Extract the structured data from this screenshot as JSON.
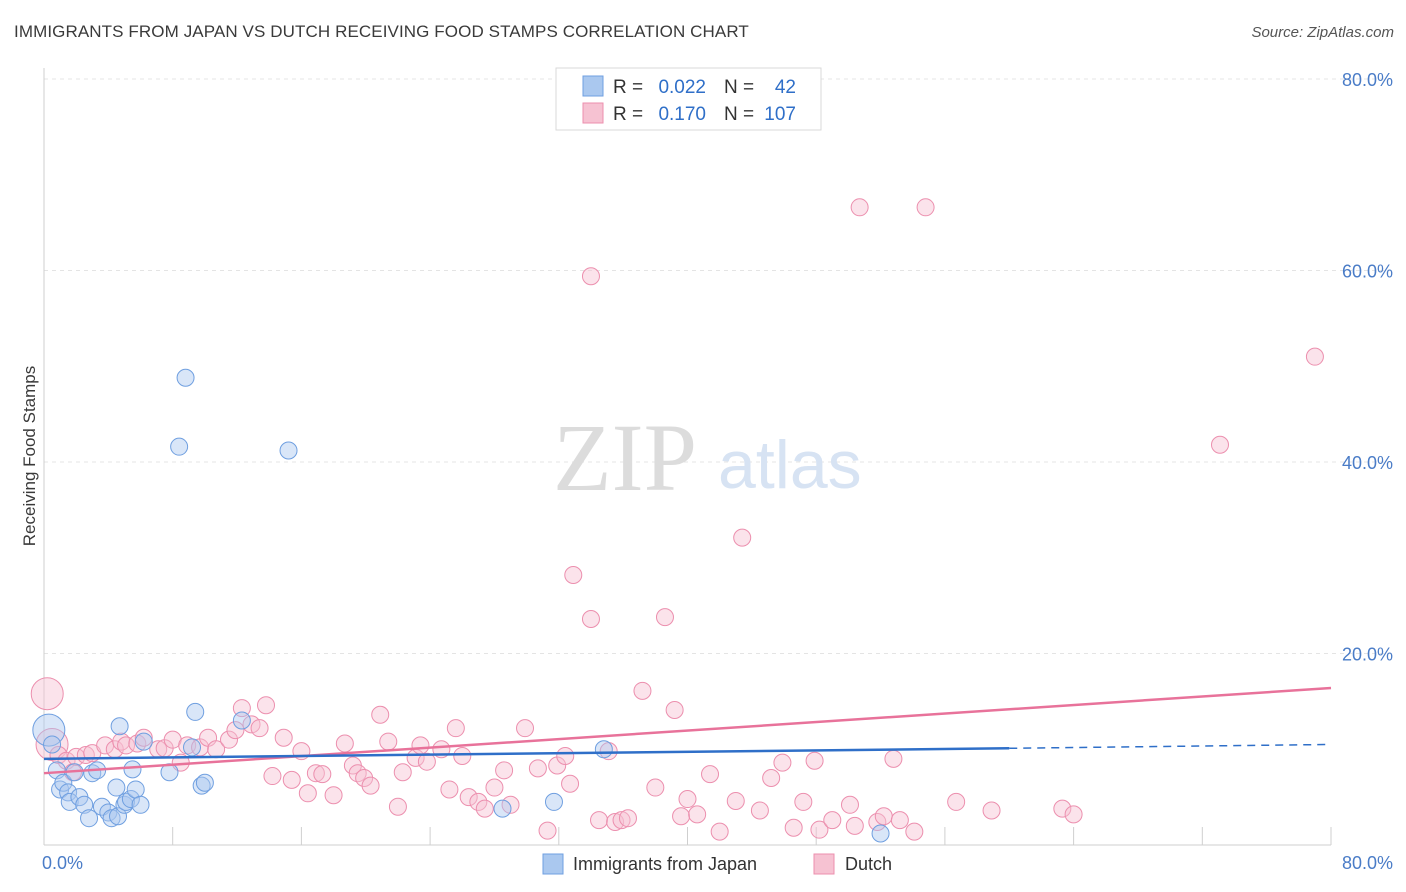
{
  "title": "IMMIGRANTS FROM JAPAN VS DUTCH RECEIVING FOOD STAMPS CORRELATION CHART",
  "source": "Source: ZipAtlas.com",
  "watermark": {
    "zip": "ZIP",
    "atlas": "atlas"
  },
  "colors": {
    "blue_fill": "#aac8ef",
    "blue_stroke": "#6f9fe0",
    "blue_line": "#2f6fc8",
    "pink_fill": "#f6c2d2",
    "pink_stroke": "#ec8fae",
    "pink_line": "#e8729a",
    "grid": "#e4e4e4",
    "axis_text": "#4a7cc7"
  },
  "legend": {
    "rows": [
      {
        "r_label": "R =",
        "r_value": "0.022",
        "n_label": "N =",
        "n_value": "42"
      },
      {
        "r_label": "R =",
        "r_value": "0.170",
        "n_label": "N =",
        "n_value": "107"
      }
    ]
  },
  "bottom_legend": [
    "Immigrants from Japan",
    "Dutch"
  ],
  "chart_data": {
    "type": "scatter",
    "title": "IMMIGRANTS FROM JAPAN VS DUTCH RECEIVING FOOD STAMPS CORRELATION CHART",
    "xlabel": "",
    "ylabel": "Receiving Food Stamps",
    "xlim": [
      0,
      80
    ],
    "ylim": [
      0,
      80
    ],
    "x_tick_labels": [
      "0.0%",
      "80.0%"
    ],
    "y_tick_labels": [
      "20.0%",
      "40.0%",
      "60.0%",
      "80.0%"
    ],
    "y_ticks": [
      20,
      40,
      60,
      80
    ],
    "series": [
      {
        "name": "Immigrants from Japan",
        "r": 0.022,
        "n": 42,
        "trend": {
          "x0": 0,
          "y0": 9.0,
          "x1": 60,
          "y1": 10.1,
          "dash_x1": 80,
          "dash_y1": 10.5
        },
        "points": [
          [
            0.3,
            12.0,
            2
          ],
          [
            0.5,
            10.5,
            1
          ],
          [
            0.8,
            7.8,
            1
          ],
          [
            1.0,
            5.8,
            1
          ],
          [
            1.2,
            6.5,
            1
          ],
          [
            1.5,
            5.5,
            1
          ],
          [
            1.6,
            4.5,
            1
          ],
          [
            1.9,
            7.6,
            1
          ],
          [
            2.2,
            5.0,
            1
          ],
          [
            2.5,
            4.2,
            1
          ],
          [
            2.8,
            2.8,
            1
          ],
          [
            3.0,
            7.5,
            1
          ],
          [
            3.3,
            7.8,
            1
          ],
          [
            3.6,
            4.0,
            1
          ],
          [
            4.0,
            3.4,
            1
          ],
          [
            4.2,
            2.8,
            1
          ],
          [
            4.5,
            6.0,
            1
          ],
          [
            4.6,
            3.0,
            1
          ],
          [
            4.7,
            12.4,
            1
          ],
          [
            5.0,
            4.2,
            1
          ],
          [
            5.1,
            4.5,
            1
          ],
          [
            5.4,
            4.8,
            1
          ],
          [
            5.5,
            7.9,
            1
          ],
          [
            5.7,
            5.8,
            1
          ],
          [
            6.0,
            4.2,
            1
          ],
          [
            6.2,
            10.8,
            1
          ],
          [
            7.8,
            7.6,
            1
          ],
          [
            8.4,
            41.6,
            1
          ],
          [
            8.8,
            48.8,
            1
          ],
          [
            9.2,
            10.2,
            1
          ],
          [
            9.4,
            13.9,
            1
          ],
          [
            9.8,
            6.2,
            1
          ],
          [
            10.0,
            6.5,
            1
          ],
          [
            12.3,
            13.0,
            1
          ],
          [
            15.2,
            41.2,
            1
          ],
          [
            28.5,
            3.8,
            1
          ],
          [
            31.7,
            4.5,
            1
          ],
          [
            34.8,
            10.0,
            1
          ],
          [
            52.0,
            1.2,
            1
          ]
        ]
      },
      {
        "name": "Dutch",
        "r": 0.17,
        "n": 107,
        "trend": {
          "x0": 0,
          "y0": 7.5,
          "x1": 80,
          "y1": 16.4
        },
        "points": [
          [
            0.2,
            15.8,
            2
          ],
          [
            0.5,
            10.5,
            2
          ],
          [
            0.9,
            9.4,
            1
          ],
          [
            1.4,
            8.8,
            1
          ],
          [
            1.8,
            7.6,
            1
          ],
          [
            2.0,
            9.2,
            1
          ],
          [
            2.6,
            9.4,
            1
          ],
          [
            3.0,
            9.6,
            1
          ],
          [
            3.8,
            10.4,
            1
          ],
          [
            4.4,
            10.0,
            1
          ],
          [
            4.8,
            10.8,
            1
          ],
          [
            5.1,
            10.4,
            1
          ],
          [
            5.8,
            10.6,
            1
          ],
          [
            6.2,
            11.2,
            1
          ],
          [
            7.1,
            10.0,
            1
          ],
          [
            7.5,
            10.1,
            1
          ],
          [
            8.0,
            11.0,
            1
          ],
          [
            8.5,
            8.6,
            1
          ],
          [
            8.9,
            10.4,
            1
          ],
          [
            9.7,
            10.2,
            1
          ],
          [
            10.2,
            11.2,
            1
          ],
          [
            10.7,
            10.0,
            1
          ],
          [
            11.5,
            11.0,
            1
          ],
          [
            11.9,
            12.0,
            1
          ],
          [
            12.3,
            14.3,
            1
          ],
          [
            12.9,
            12.6,
            1
          ],
          [
            13.4,
            12.2,
            1
          ],
          [
            13.8,
            14.6,
            1
          ],
          [
            14.2,
            7.2,
            1
          ],
          [
            14.9,
            11.2,
            1
          ],
          [
            15.4,
            6.8,
            1
          ],
          [
            16.0,
            9.8,
            1
          ],
          [
            16.4,
            5.4,
            1
          ],
          [
            16.9,
            7.5,
            1
          ],
          [
            17.3,
            7.4,
            1
          ],
          [
            18.0,
            5.2,
            1
          ],
          [
            18.7,
            10.6,
            1
          ],
          [
            19.2,
            8.3,
            1
          ],
          [
            19.5,
            7.5,
            1
          ],
          [
            19.9,
            7.0,
            1
          ],
          [
            20.3,
            6.2,
            1
          ],
          [
            20.9,
            13.6,
            1
          ],
          [
            21.4,
            10.8,
            1
          ],
          [
            22.0,
            4.0,
            1
          ],
          [
            22.3,
            7.6,
            1
          ],
          [
            23.1,
            9.1,
            1
          ],
          [
            23.4,
            10.4,
            1
          ],
          [
            23.8,
            8.7,
            1
          ],
          [
            24.7,
            10.0,
            1
          ],
          [
            25.2,
            5.8,
            1
          ],
          [
            25.6,
            12.2,
            1
          ],
          [
            26.0,
            9.3,
            1
          ],
          [
            26.4,
            5.0,
            1
          ],
          [
            27.0,
            4.5,
            1
          ],
          [
            27.4,
            3.8,
            1
          ],
          [
            28.0,
            6.0,
            1
          ],
          [
            28.6,
            7.8,
            1
          ],
          [
            29.0,
            4.2,
            1
          ],
          [
            29.9,
            12.2,
            1
          ],
          [
            30.7,
            8.0,
            1
          ],
          [
            31.3,
            1.5,
            1
          ],
          [
            31.9,
            8.3,
            1
          ],
          [
            32.4,
            9.3,
            1
          ],
          [
            32.7,
            6.4,
            1
          ],
          [
            32.9,
            28.2,
            1
          ],
          [
            34.0,
            23.6,
            1
          ],
          [
            34.0,
            59.4,
            1
          ],
          [
            34.5,
            2.6,
            1
          ],
          [
            35.1,
            9.8,
            1
          ],
          [
            35.5,
            2.4,
            1
          ],
          [
            35.9,
            2.6,
            1
          ],
          [
            36.3,
            2.8,
            1
          ],
          [
            37.2,
            16.1,
            1
          ],
          [
            38.0,
            6.0,
            1
          ],
          [
            38.6,
            23.8,
            1
          ],
          [
            39.2,
            14.1,
            1
          ],
          [
            39.6,
            3.0,
            1
          ],
          [
            40.0,
            4.8,
            1
          ],
          [
            40.6,
            3.2,
            1
          ],
          [
            41.4,
            7.4,
            1
          ],
          [
            42.0,
            1.4,
            1
          ],
          [
            43.0,
            4.6,
            1
          ],
          [
            43.4,
            32.1,
            1
          ],
          [
            44.5,
            3.6,
            1
          ],
          [
            45.2,
            7.0,
            1
          ],
          [
            45.9,
            8.6,
            1
          ],
          [
            46.6,
            1.8,
            1
          ],
          [
            47.2,
            4.5,
            1
          ],
          [
            47.9,
            8.8,
            1
          ],
          [
            48.2,
            1.6,
            1
          ],
          [
            49.0,
            2.6,
            1
          ],
          [
            50.1,
            4.2,
            1
          ],
          [
            50.4,
            2.0,
            1
          ],
          [
            50.7,
            66.6,
            1
          ],
          [
            51.8,
            2.4,
            1
          ],
          [
            52.2,
            3.0,
            1
          ],
          [
            52.8,
            9.0,
            1
          ],
          [
            53.2,
            2.6,
            1
          ],
          [
            54.1,
            1.4,
            1
          ],
          [
            54.8,
            66.6,
            1
          ],
          [
            56.7,
            4.5,
            1
          ],
          [
            58.9,
            3.6,
            1
          ],
          [
            63.3,
            3.8,
            1
          ],
          [
            64.0,
            3.2,
            1
          ],
          [
            73.1,
            41.8,
            1
          ],
          [
            79.0,
            51.0,
            1
          ]
        ]
      }
    ]
  }
}
